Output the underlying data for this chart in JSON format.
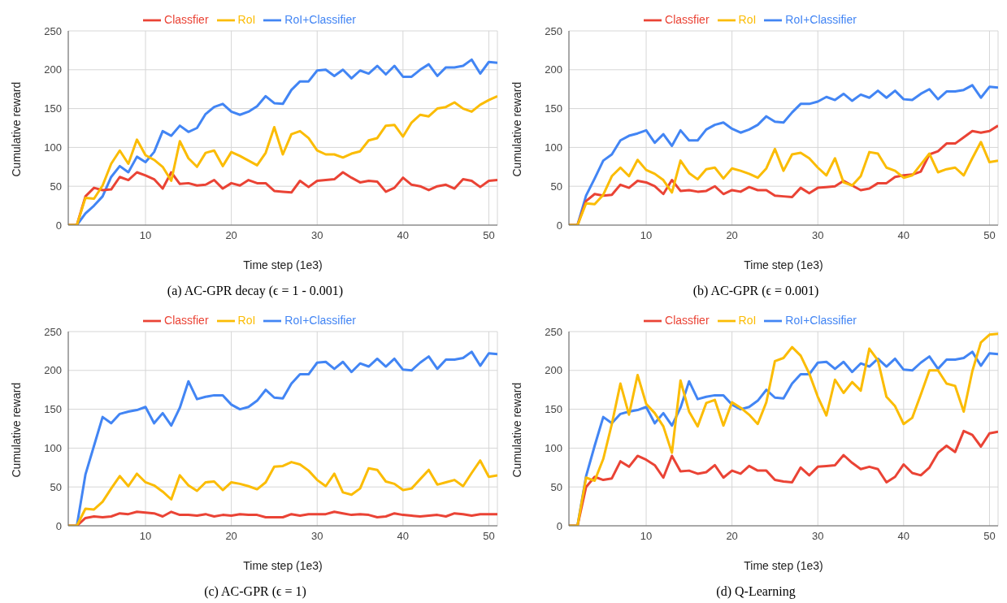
{
  "chart_data": [
    {
      "type": "line",
      "title": "(a) AC-GPR decay (ϵ = 1 - 0.001)",
      "xlabel": "Time step (1e3)",
      "ylabel": "Cumulative reward",
      "xlim": [
        1,
        51
      ],
      "xticks": [
        10,
        20,
        30,
        40,
        50
      ],
      "ylim": [
        0,
        250
      ],
      "yticks": [
        0,
        50,
        100,
        150,
        200,
        250
      ],
      "grid": true,
      "legend": "top",
      "marker": "none",
      "line_style": "solid",
      "x": [
        1,
        2,
        3,
        4,
        5,
        6,
        7,
        8,
        9,
        10,
        11,
        12,
        13,
        14,
        15,
        16,
        17,
        18,
        19,
        20,
        21,
        22,
        23,
        24,
        25,
        26,
        27,
        28,
        29,
        30,
        31,
        32,
        33,
        34,
        35,
        36,
        37,
        38,
        39,
        40,
        41,
        42,
        43,
        44,
        45,
        46,
        47,
        48,
        49,
        50,
        51
      ],
      "series": [
        {
          "name": "RoI+Classifier",
          "color": "#4285f4",
          "values": [
            0,
            0,
            15,
            25,
            37,
            62,
            76,
            68,
            88,
            81,
            94,
            121,
            115,
            128,
            120,
            125,
            143,
            152,
            156,
            146,
            142,
            146,
            153,
            166,
            157,
            156,
            174,
            185,
            185,
            199,
            200,
            192,
            200,
            189,
            199,
            195,
            205,
            194,
            205,
            191,
            191,
            200,
            207,
            192,
            203,
            203,
            205,
            213,
            195,
            210,
            209
          ]
        },
        {
          "name": "Classfier",
          "color": "#ea4335",
          "values": [
            0,
            0,
            37,
            48,
            45,
            46,
            62,
            58,
            68,
            64,
            59,
            47,
            68,
            53,
            54,
            51,
            52,
            58,
            47,
            54,
            51,
            58,
            54,
            54,
            44,
            43,
            42,
            57,
            49,
            57,
            58,
            59,
            68,
            61,
            55,
            57,
            56,
            43,
            48,
            61,
            52,
            50,
            45,
            50,
            52,
            47,
            59,
            57,
            49,
            57,
            58
          ]
        },
        {
          "name": "RoI",
          "color": "#fbbc04",
          "values": [
            0,
            0,
            35,
            34,
            51,
            79,
            96,
            79,
            110,
            90,
            84,
            75,
            57,
            108,
            86,
            75,
            93,
            96,
            76,
            94,
            89,
            83,
            77,
            93,
            126,
            91,
            117,
            121,
            112,
            96,
            91,
            91,
            87,
            92,
            95,
            109,
            112,
            128,
            129,
            114,
            132,
            142,
            140,
            150,
            152,
            158,
            150,
            146,
            155,
            161,
            166
          ]
        }
      ]
    },
    {
      "type": "line",
      "title": "(b) AC-GPR (ϵ = 0.001)",
      "xlabel": "Time step (1e3)",
      "ylabel": "Cumulative reward",
      "xlim": [
        1,
        51
      ],
      "xticks": [
        10,
        20,
        30,
        40,
        50
      ],
      "ylim": [
        0,
        250
      ],
      "yticks": [
        0,
        50,
        100,
        150,
        200,
        250
      ],
      "grid": true,
      "legend": "top",
      "marker": "none",
      "line_style": "solid",
      "x": [
        1,
        2,
        3,
        4,
        5,
        6,
        7,
        8,
        9,
        10,
        11,
        12,
        13,
        14,
        15,
        16,
        17,
        18,
        19,
        20,
        21,
        22,
        23,
        24,
        25,
        26,
        27,
        28,
        29,
        30,
        31,
        32,
        33,
        34,
        35,
        36,
        37,
        38,
        39,
        40,
        41,
        42,
        43,
        44,
        45,
        46,
        47,
        48,
        49,
        50,
        51
      ],
      "series": [
        {
          "name": "RoI+Classifier",
          "color": "#4285f4",
          "values": [
            0,
            0,
            38,
            60,
            83,
            91,
            109,
            115,
            118,
            122,
            106,
            117,
            102,
            122,
            109,
            109,
            123,
            129,
            132,
            124,
            119,
            123,
            129,
            140,
            133,
            132,
            145,
            156,
            156,
            159,
            165,
            161,
            169,
            160,
            168,
            164,
            173,
            164,
            173,
            162,
            161,
            169,
            175,
            162,
            172,
            172,
            174,
            180,
            164,
            178,
            177
          ]
        },
        {
          "name": "Classfier",
          "color": "#ea4335",
          "values": [
            0,
            0,
            31,
            40,
            38,
            39,
            52,
            48,
            57,
            55,
            50,
            40,
            58,
            44,
            45,
            43,
            44,
            50,
            40,
            45,
            43,
            49,
            45,
            45,
            38,
            37,
            36,
            48,
            41,
            48,
            49,
            50,
            57,
            51,
            45,
            47,
            54,
            54,
            62,
            64,
            65,
            69,
            91,
            95,
            105,
            105,
            113,
            121,
            119,
            121,
            128
          ]
        },
        {
          "name": "RoI",
          "color": "#fbbc04",
          "values": [
            0,
            0,
            28,
            27,
            39,
            63,
            74,
            63,
            84,
            71,
            66,
            58,
            42,
            83,
            67,
            59,
            72,
            74,
            60,
            73,
            70,
            66,
            61,
            73,
            98,
            70,
            91,
            93,
            86,
            74,
            64,
            86,
            55,
            51,
            63,
            94,
            92,
            74,
            70,
            61,
            64,
            78,
            92,
            68,
            72,
            74,
            64,
            86,
            107,
            81,
            83
          ]
        }
      ]
    },
    {
      "type": "line",
      "title": "(c) AC-GPR (ϵ = 1)",
      "xlabel": "Time step (1e3)",
      "ylabel": "Cumulative reward",
      "xlim": [
        1,
        51
      ],
      "xticks": [
        10,
        20,
        30,
        40,
        50
      ],
      "ylim": [
        0,
        250
      ],
      "yticks": [
        0,
        50,
        100,
        150,
        200,
        250
      ],
      "grid": true,
      "legend": "top",
      "marker": "none",
      "line_style": "solid",
      "x": [
        1,
        2,
        3,
        4,
        5,
        6,
        7,
        8,
        9,
        10,
        11,
        12,
        13,
        14,
        15,
        16,
        17,
        18,
        19,
        20,
        21,
        22,
        23,
        24,
        25,
        26,
        27,
        28,
        29,
        30,
        31,
        32,
        33,
        34,
        35,
        36,
        37,
        38,
        39,
        40,
        41,
        42,
        43,
        44,
        45,
        46,
        47,
        48,
        49,
        50,
        51
      ],
      "series": [
        {
          "name": "RoI+Classifier",
          "color": "#4285f4",
          "values": [
            0,
            0,
            66,
            103,
            140,
            132,
            144,
            147,
            149,
            153,
            132,
            145,
            129,
            152,
            186,
            163,
            166,
            168,
            168,
            156,
            150,
            153,
            161,
            175,
            165,
            164,
            183,
            195,
            195,
            210,
            211,
            202,
            211,
            198,
            209,
            205,
            215,
            205,
            215,
            201,
            200,
            210,
            218,
            202,
            214,
            214,
            216,
            224,
            206,
            222,
            221
          ]
        },
        {
          "name": "Classfier",
          "color": "#ea4335",
          "values": [
            0,
            0,
            10,
            12,
            11,
            12,
            16,
            15,
            18,
            17,
            16,
            12,
            18,
            14,
            14,
            13,
            15,
            12,
            14,
            13,
            15,
            14,
            14,
            11,
            11,
            11,
            15,
            13,
            15,
            15,
            15,
            18,
            16,
            14,
            15,
            14,
            11,
            12,
            16,
            14,
            13,
            12,
            13,
            14,
            12,
            16,
            15,
            13,
            15,
            15,
            15
          ]
        },
        {
          "name": "RoI",
          "color": "#fbbc04",
          "values": [
            0,
            0,
            22,
            21,
            31,
            48,
            64,
            51,
            67,
            56,
            52,
            44,
            34,
            65,
            52,
            45,
            56,
            57,
            46,
            56,
            54,
            51,
            47,
            56,
            76,
            77,
            82,
            79,
            71,
            59,
            51,
            67,
            43,
            40,
            48,
            74,
            72,
            57,
            54,
            46,
            48,
            60,
            72,
            53,
            56,
            59,
            51,
            68,
            84,
            63,
            65
          ]
        }
      ]
    },
    {
      "type": "line",
      "title": "(d) Q-Learning",
      "xlabel": "Time step (1e3)",
      "ylabel": "Cumulative reward",
      "xlim": [
        1,
        51
      ],
      "xticks": [
        10,
        20,
        30,
        40,
        50
      ],
      "ylim": [
        0,
        250
      ],
      "yticks": [
        0,
        50,
        100,
        150,
        200,
        250
      ],
      "grid": true,
      "legend": "top",
      "marker": "none",
      "line_style": "solid",
      "x": [
        1,
        2,
        3,
        4,
        5,
        6,
        7,
        8,
        9,
        10,
        11,
        12,
        13,
        14,
        15,
        16,
        17,
        18,
        19,
        20,
        21,
        22,
        23,
        24,
        25,
        26,
        27,
        28,
        29,
        30,
        31,
        32,
        33,
        34,
        35,
        36,
        37,
        38,
        39,
        40,
        41,
        42,
        43,
        44,
        45,
        46,
        47,
        48,
        49,
        50,
        51
      ],
      "series": [
        {
          "name": "RoI+Classifier",
          "color": "#4285f4",
          "values": [
            0,
            0,
            64,
            103,
            140,
            132,
            144,
            147,
            149,
            153,
            132,
            145,
            129,
            152,
            186,
            163,
            166,
            168,
            168,
            156,
            150,
            153,
            161,
            175,
            165,
            164,
            183,
            195,
            195,
            210,
            211,
            202,
            211,
            198,
            209,
            205,
            215,
            205,
            215,
            201,
            200,
            210,
            218,
            202,
            214,
            214,
            216,
            224,
            206,
            222,
            221
          ]
        },
        {
          "name": "Classfier",
          "color": "#ea4335",
          "values": [
            0,
            0,
            50,
            63,
            59,
            61,
            83,
            76,
            90,
            85,
            78,
            62,
            90,
            70,
            71,
            67,
            69,
            78,
            62,
            71,
            67,
            77,
            71,
            71,
            59,
            57,
            56,
            75,
            65,
            76,
            77,
            78,
            91,
            81,
            73,
            76,
            73,
            56,
            63,
            79,
            68,
            65,
            75,
            94,
            103,
            95,
            122,
            117,
            102,
            119,
            121
          ]
        },
        {
          "name": "RoI",
          "color": "#fbbc04",
          "values": [
            0,
            0,
            62,
            58,
            86,
            131,
            183,
            143,
            194,
            157,
            145,
            128,
            94,
            187,
            147,
            128,
            158,
            162,
            129,
            159,
            152,
            143,
            131,
            159,
            212,
            216,
            230,
            219,
            196,
            166,
            142,
            188,
            171,
            185,
            174,
            228,
            213,
            166,
            154,
            131,
            139,
            169,
            200,
            200,
            183,
            180,
            147,
            199,
            236,
            246,
            247
          ]
        }
      ]
    }
  ]
}
